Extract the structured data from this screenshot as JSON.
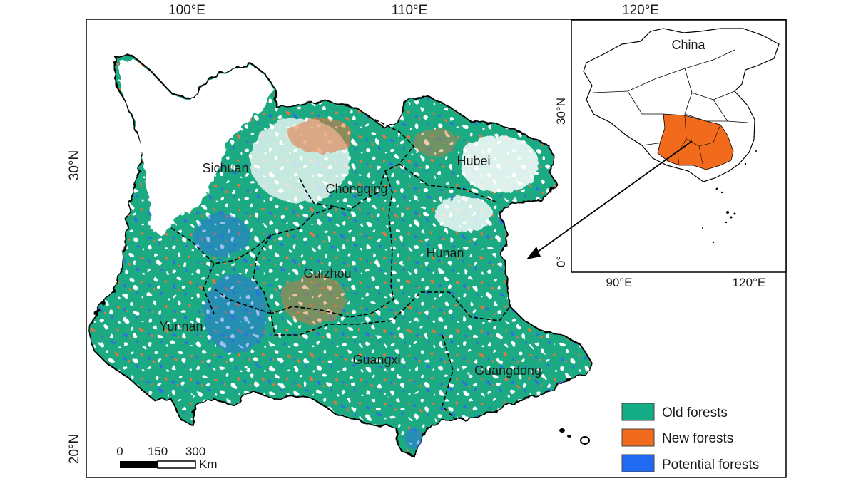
{
  "map": {
    "lon_ticks": [
      "100°E",
      "110°E",
      "120°E"
    ],
    "lat_ticks": [
      "30°N",
      "20°N"
    ],
    "provinces": [
      {
        "name": "Sichuan"
      },
      {
        "name": "Chongqing"
      },
      {
        "name": "Hubei"
      },
      {
        "name": "Hunan"
      },
      {
        "name": "Guizhou"
      },
      {
        "name": "Yunnan"
      },
      {
        "name": "Guangxi"
      },
      {
        "name": "Guangdong"
      }
    ],
    "scale_bar": {
      "ticks": [
        "0",
        "150",
        "300"
      ],
      "unit": "Km"
    }
  },
  "inset": {
    "label": "China",
    "lon_ticks": [
      "90°E",
      "120°E"
    ],
    "lat_ticks": [
      "30°N",
      "0°"
    ],
    "highlight_color": "#f26b1d"
  },
  "legend": {
    "items": [
      {
        "label": "Old forests",
        "color": "#14ad85"
      },
      {
        "label": "New forests",
        "color": "#f26b1d"
      },
      {
        "label": "Potential forests",
        "color": "#1f6af0"
      }
    ]
  }
}
